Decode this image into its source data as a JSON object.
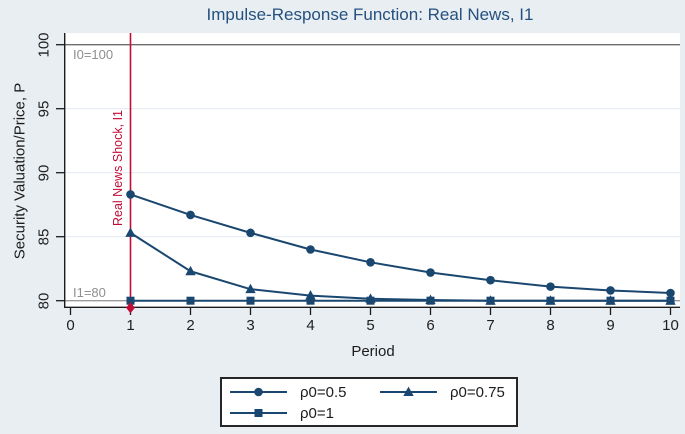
{
  "window": {
    "title": "Impulse-Response Function: Real News, I1"
  },
  "colors": {
    "background": "#e9eef2",
    "plot_background": "#ffffff",
    "navy": "#1a476f",
    "title_navy": "#24517f",
    "shock_red": "#c10d36",
    "grid": "#e4ecf2",
    "axis": "#1c1c1c",
    "tick_text": "#202020",
    "ref_text_gray": "#8f8f8f"
  },
  "chart_data": {
    "type": "line",
    "title": "Impulse-Response Function: Real News, I1",
    "xlabel": "Period",
    "ylabel": "Security Valuation/Price, P",
    "xlim": [
      -0.1,
      10.2
    ],
    "ylim": [
      79.4,
      100.9
    ],
    "xticks": [
      0,
      1,
      2,
      3,
      4,
      5,
      6,
      7,
      8,
      9,
      10
    ],
    "yticks": [
      80,
      85,
      90,
      95,
      100
    ],
    "gridlines_y": [
      85,
      90,
      95
    ],
    "grid": "horizontal light gridlines on white plot",
    "legend_position": "bottom-center boxed, 2 columns",
    "x": [
      1,
      2,
      3,
      4,
      5,
      6,
      7,
      8,
      9,
      10
    ],
    "series": [
      {
        "name": "ρ0=0.5",
        "marker": "circle",
        "values": [
          88.3,
          86.7,
          85.3,
          84.0,
          83.0,
          82.2,
          81.6,
          81.1,
          80.8,
          80.6
        ]
      },
      {
        "name": "ρ0=0.75",
        "marker": "triangle",
        "values": [
          85.3,
          82.3,
          80.9,
          80.4,
          80.15,
          80.05,
          80.0,
          80.0,
          80.0,
          80.0
        ]
      },
      {
        "name": "ρ0=1",
        "marker": "square",
        "values": [
          80,
          80,
          80,
          80,
          80,
          80,
          80,
          80,
          80,
          80
        ]
      }
    ],
    "ref_lines": [
      {
        "value": 100,
        "label": "I0=100",
        "color": "#6e6e6e"
      },
      {
        "value": 80,
        "label": "I1=80",
        "color": "#9a9a9a"
      }
    ],
    "shock_line": {
      "x": 1,
      "label": "Real News Shock, I1",
      "marker": "diamond",
      "marker_y": 79.45
    }
  }
}
